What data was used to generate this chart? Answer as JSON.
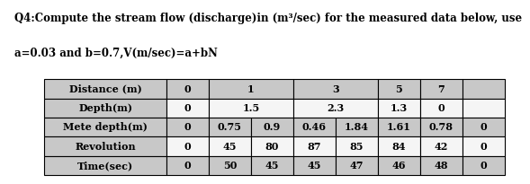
{
  "title_line1": "Q4:Compute the stream flow (discharge)in (m³/sec) for the measured data below, use",
  "title_line2": "a=0.03 and b=0.7,V(m/sec)=a+bN",
  "title_fontsize": 8.5,
  "table_fontsize": 8.0,
  "bg_color": "#ffffff",
  "border_color": "#000000",
  "header_bg": "#c8c8c8",
  "data_bg_light": "#e0e0e0",
  "data_bg_white": "#f5f5f5",
  "lw": 0.8,
  "table_rows": [
    {
      "label": "Distance (m)",
      "cells": [
        {
          "text": "0",
          "span": 1
        },
        {
          "text": "1",
          "span": 2
        },
        {
          "text": "3",
          "span": 2
        },
        {
          "text": "5",
          "span": 1
        },
        {
          "text": "7",
          "span": 1
        },
        {
          "text": "",
          "span": 1
        }
      ]
    },
    {
      "label": "Depth(m)",
      "cells": [
        {
          "text": "0",
          "span": 1
        },
        {
          "text": "1.5",
          "span": 2
        },
        {
          "text": "2.3",
          "span": 2
        },
        {
          "text": "1.3",
          "span": 1
        },
        {
          "text": "0",
          "span": 1
        },
        {
          "text": "",
          "span": 1
        }
      ]
    },
    {
      "label": "Mete depth(m)",
      "cells": [
        {
          "text": "0",
          "span": 1
        },
        {
          "text": "0.75",
          "span": 1
        },
        {
          "text": "0.9",
          "span": 1
        },
        {
          "text": "0.46",
          "span": 1
        },
        {
          "text": "1.84",
          "span": 1
        },
        {
          "text": "1.61",
          "span": 1
        },
        {
          "text": "0.78",
          "span": 1
        },
        {
          "text": "0",
          "span": 1
        }
      ]
    },
    {
      "label": "Revolution",
      "cells": [
        {
          "text": "0",
          "span": 1
        },
        {
          "text": "45",
          "span": 1
        },
        {
          "text": "80",
          "span": 1
        },
        {
          "text": "87",
          "span": 1
        },
        {
          "text": "85",
          "span": 1
        },
        {
          "text": "84",
          "span": 1
        },
        {
          "text": "42",
          "span": 1
        },
        {
          "text": "0",
          "span": 1
        }
      ]
    },
    {
      "label": "Time(sec)",
      "cells": [
        {
          "text": "0",
          "span": 1
        },
        {
          "text": "50",
          "span": 1
        },
        {
          "text": "45",
          "span": 1
        },
        {
          "text": "45",
          "span": 1
        },
        {
          "text": "47",
          "span": 1
        },
        {
          "text": "46",
          "span": 1
        },
        {
          "text": "48",
          "span": 1
        },
        {
          "text": "0",
          "span": 1
        }
      ]
    }
  ]
}
